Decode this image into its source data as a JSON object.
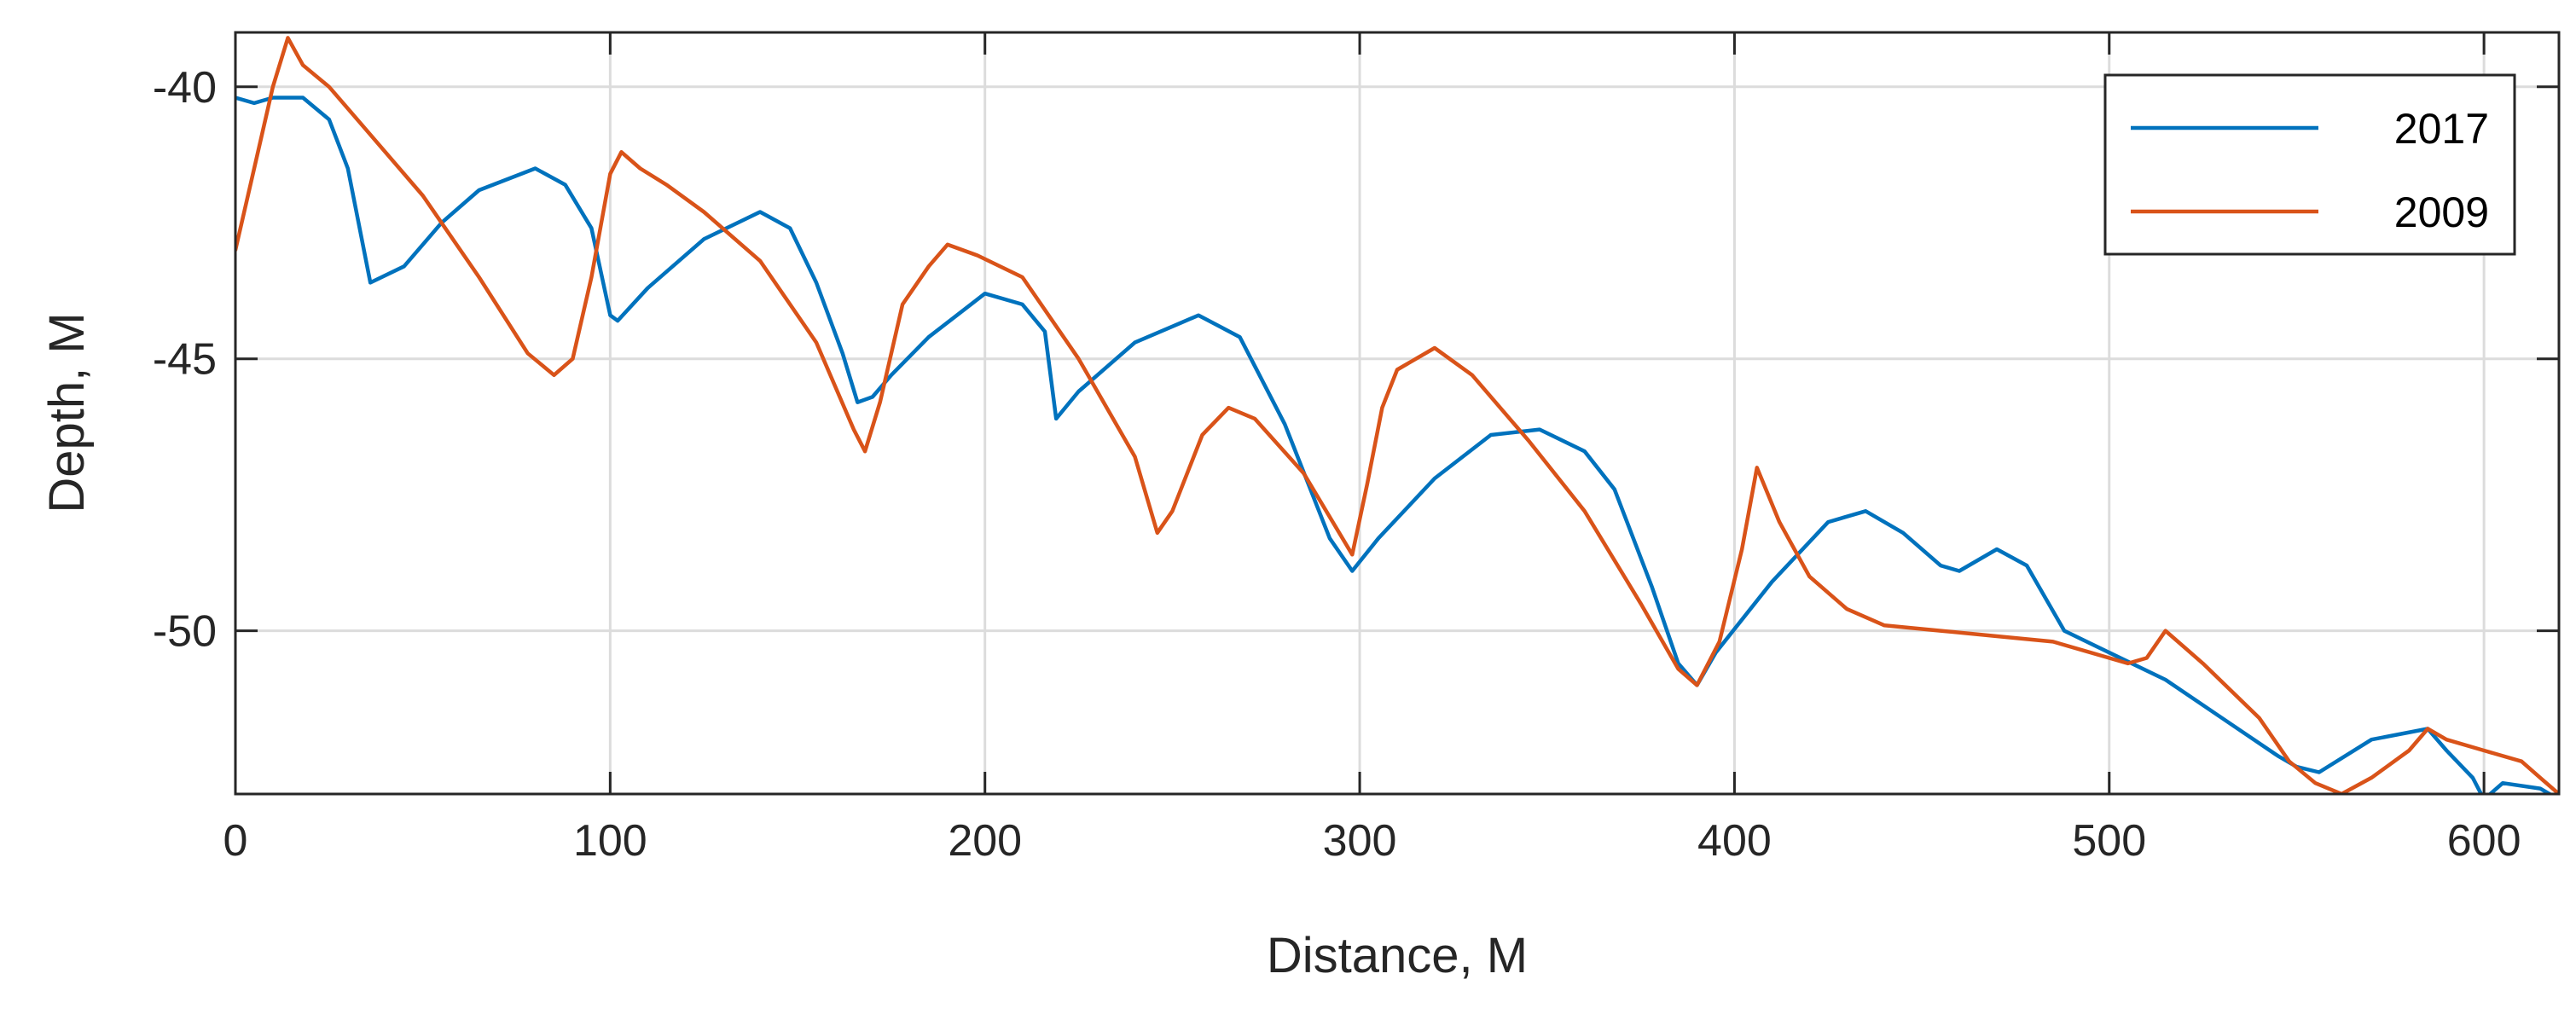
{
  "chart_data": {
    "type": "line",
    "title": "",
    "xlabel": "Distance, M",
    "ylabel": "Depth, M",
    "xlim": [
      0,
      620
    ],
    "ylim": [
      -53,
      -39
    ],
    "xticks": [
      0,
      100,
      200,
      300,
      400,
      500,
      600
    ],
    "yticks": [
      -40,
      -45,
      -50
    ],
    "grid": true,
    "legend_position": "top-right",
    "series": [
      {
        "name": "2017",
        "color": "#0072BD",
        "x": [
          0,
          5,
          10,
          18,
          25,
          30,
          36,
          45,
          55,
          65,
          80,
          88,
          95,
          100,
          102,
          110,
          125,
          140,
          148,
          155,
          162,
          166,
          170,
          175,
          185,
          200,
          210,
          216,
          219,
          225,
          240,
          257,
          268,
          280,
          292,
          298,
          305,
          320,
          335,
          348,
          360,
          368,
          378,
          385,
          390,
          395,
          410,
          425,
          435,
          445,
          455,
          460,
          470,
          478,
          488,
          500,
          515,
          530,
          545,
          550,
          556,
          570,
          585,
          590,
          597,
          600,
          605,
          615,
          620
        ],
        "y": [
          -40.2,
          -40.3,
          -40.2,
          -40.2,
          -40.6,
          -41.5,
          -43.6,
          -43.3,
          -42.5,
          -41.9,
          -41.5,
          -41.8,
          -42.6,
          -44.2,
          -44.3,
          -43.7,
          -42.8,
          -42.3,
          -42.6,
          -43.6,
          -44.9,
          -45.8,
          -45.7,
          -45.3,
          -44.6,
          -43.8,
          -44.0,
          -44.5,
          -46.1,
          -45.6,
          -44.7,
          -44.2,
          -44.6,
          -46.2,
          -48.3,
          -48.9,
          -48.3,
          -47.2,
          -46.4,
          -46.3,
          -46.7,
          -47.4,
          -49.2,
          -50.6,
          -51.0,
          -50.4,
          -49.1,
          -48.0,
          -47.8,
          -48.2,
          -48.8,
          -48.9,
          -48.5,
          -48.8,
          -50.0,
          -50.4,
          -50.9,
          -51.6,
          -52.3,
          -52.5,
          -52.6,
          -52.0,
          -51.8,
          -52.2,
          -52.7,
          -53.1,
          -52.8,
          -52.9,
          -53.1
        ]
      },
      {
        "name": "2009",
        "color": "#D95319",
        "x": [
          0,
          5,
          10,
          14,
          18,
          25,
          35,
          50,
          65,
          78,
          85,
          90,
          95,
          100,
          103,
          108,
          115,
          125,
          140,
          155,
          165,
          168,
          172,
          178,
          185,
          190,
          198,
          210,
          225,
          240,
          246,
          250,
          258,
          265,
          272,
          285,
          298,
          302,
          306,
          310,
          320,
          330,
          345,
          360,
          375,
          385,
          390,
          396,
          402,
          406,
          412,
          420,
          430,
          440,
          455,
          470,
          485,
          500,
          505,
          510,
          515,
          525,
          540,
          548,
          555,
          562,
          570,
          580,
          585,
          590,
          600,
          610,
          615,
          620
        ],
        "y": [
          -43.0,
          -41.5,
          -40.0,
          -39.1,
          -39.6,
          -40.0,
          -40.8,
          -42.0,
          -43.5,
          -44.9,
          -45.3,
          -45.0,
          -43.5,
          -41.6,
          -41.2,
          -41.5,
          -41.8,
          -42.3,
          -43.2,
          -44.7,
          -46.3,
          -46.7,
          -45.8,
          -44.0,
          -43.3,
          -42.9,
          -43.1,
          -43.5,
          -45.0,
          -46.8,
          -48.2,
          -47.8,
          -46.4,
          -45.9,
          -46.1,
          -47.1,
          -48.6,
          -47.3,
          -45.9,
          -45.2,
          -44.8,
          -45.3,
          -46.5,
          -47.8,
          -49.5,
          -50.7,
          -51.0,
          -50.2,
          -48.5,
          -47.0,
          -48.0,
          -49.0,
          -49.6,
          -49.9,
          -50.0,
          -50.1,
          -50.2,
          -50.5,
          -50.6,
          -50.5,
          -50.0,
          -50.6,
          -51.6,
          -52.4,
          -52.8,
          -53.0,
          -52.7,
          -52.2,
          -51.8,
          -52.0,
          -52.2,
          -52.4,
          -52.7,
          -53.0
        ]
      }
    ]
  }
}
